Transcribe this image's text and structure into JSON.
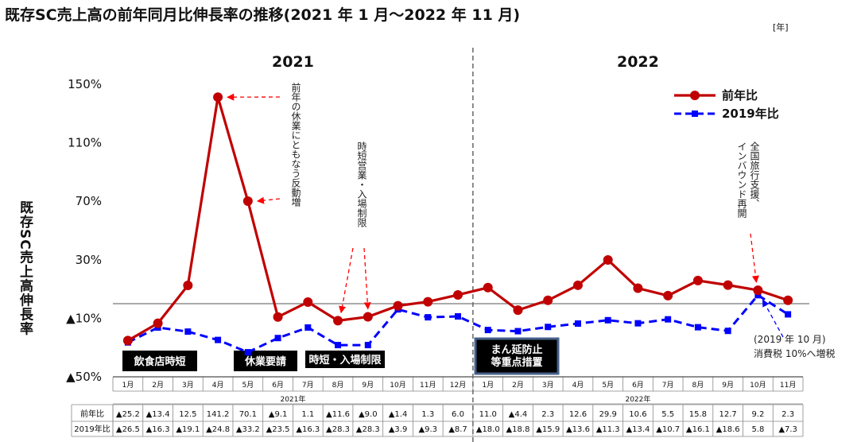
{
  "title": "既存SC売上高の前年同月比伸長率の推移(2021 年 1 月～2022 年 11 月)",
  "unit_label": "[年]",
  "ylabel": "既存SC売上高伸長率",
  "chart_data": {
    "type": "line",
    "ylabel": "既存SC売上高伸長率",
    "ylim": [
      -50,
      150
    ],
    "yticks": [
      150,
      110,
      70,
      30,
      -10,
      -50
    ],
    "ytick_labels": [
      "150%",
      "110%",
      "70%",
      "30%",
      "▲10%",
      "▲50%"
    ],
    "years": [
      {
        "label": "2021",
        "months": 12,
        "axis_label": "2021年"
      },
      {
        "label": "2022",
        "months": 11,
        "axis_label": "2022年"
      }
    ],
    "categories": [
      "1月",
      "2月",
      "3月",
      "4月",
      "5月",
      "6月",
      "7月",
      "8月",
      "9月",
      "10月",
      "11月",
      "12月",
      "1月",
      "2月",
      "3月",
      "4月",
      "5月",
      "6月",
      "7月",
      "8月",
      "9月",
      "10月",
      "11月"
    ],
    "series": [
      {
        "name": "前年比",
        "color": "#c00000",
        "values": [
          -25.2,
          -13.4,
          12.5,
          141.2,
          70.1,
          -9.1,
          1.1,
          -11.6,
          -9.0,
          -1.4,
          1.3,
          6.0,
          11.0,
          -4.4,
          2.3,
          12.6,
          29.9,
          10.6,
          5.5,
          15.8,
          12.7,
          9.2,
          2.3
        ],
        "labels": [
          "▲25.2",
          "▲13.4",
          "12.5",
          "141.2",
          "70.1",
          "▲9.1",
          "1.1",
          "▲11.6",
          "▲9.0",
          "▲1.4",
          "1.3",
          "6.0",
          "11.0",
          "▲4.4",
          "2.3",
          "12.6",
          "29.9",
          "10.6",
          "5.5",
          "15.8",
          "12.7",
          "9.2",
          "2.3"
        ]
      },
      {
        "name": "2019年比",
        "color": "#0000ff",
        "values": [
          -26.5,
          -16.3,
          -19.1,
          -24.8,
          -33.2,
          -23.5,
          -16.3,
          -28.3,
          -28.3,
          -3.9,
          -9.3,
          -8.7,
          -18.0,
          -18.8,
          -15.9,
          -13.6,
          -11.3,
          -13.4,
          -10.7,
          -16.1,
          -18.6,
          5.8,
          -7.3
        ],
        "labels": [
          "▲26.5",
          "▲16.3",
          "▲19.1",
          "▲24.8",
          "▲33.2",
          "▲23.5",
          "▲16.3",
          "▲28.3",
          "▲28.3",
          "▲3.9",
          "▲9.3",
          "▲8.7",
          "▲18.0",
          "▲18.8",
          "▲15.9",
          "▲13.6",
          "▲11.3",
          "▲13.4",
          "▲10.7",
          "▲16.1",
          "▲18.6",
          "5.8",
          "▲7.3"
        ]
      }
    ],
    "table_row_labels": [
      "前年比",
      "2019年比"
    ],
    "annotations": [
      {
        "text": "前年の休業にともなう反動増"
      },
      {
        "text": "時短営業・入場制限"
      },
      {
        "text": "全国旅行支援、インバウンド再開"
      },
      {
        "text": "(2019 年 10 月)"
      },
      {
        "text": "消費税 10%へ増税"
      }
    ],
    "events": [
      {
        "text": "飲食店時短"
      },
      {
        "text": "休業要請"
      },
      {
        "text": "時短・入場制限"
      },
      {
        "text": "まん延防止"
      },
      {
        "text": "等重点措置"
      }
    ],
    "legend_position": "top-right",
    "grid": false
  }
}
